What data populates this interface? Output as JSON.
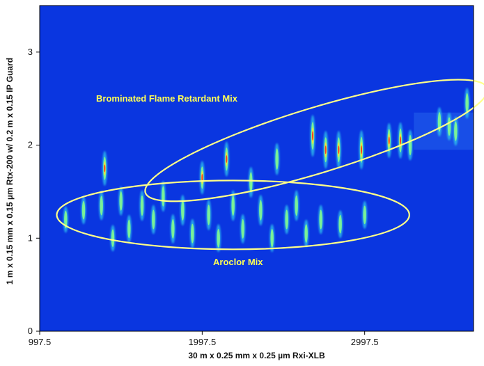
{
  "chart_data": {
    "type": "scatter",
    "subtype": "2D GCxGC contour plot",
    "title": "",
    "xlabel": "30 m x 0.25 mm x 0.25 µm Rxi-XLB",
    "ylabel": "1 m x 0.15 mm x 0.15 µm Rtx-200 w/ 0.2 m x 0.15 IP Guard",
    "xlim": [
      997.5,
      3667.5
    ],
    "ylim": [
      0,
      3.5
    ],
    "x_ticks": [
      "997.5",
      "1997.5",
      "2997.5"
    ],
    "y_ticks": [
      "0",
      "1",
      "2",
      "3"
    ],
    "background_color": "#0a36e0",
    "ellipse_color": "#ffff88",
    "grid": false,
    "groups": [
      {
        "name": "Brominated Flame Retardant Mix",
        "peaks": [
          {
            "x": 1397.5,
            "y": 1.75,
            "i": 0.75
          },
          {
            "x": 1997.5,
            "y": 1.65,
            "i": 0.7
          },
          {
            "x": 2147.5,
            "y": 1.85,
            "i": 0.75
          },
          {
            "x": 2297.5,
            "y": 1.6,
            "i": 0.6
          },
          {
            "x": 2457.5,
            "y": 1.85,
            "i": 0.65
          },
          {
            "x": 2677.5,
            "y": 2.1,
            "i": 1.0
          },
          {
            "x": 2757.5,
            "y": 1.95,
            "i": 0.85
          },
          {
            "x": 2837.5,
            "y": 1.95,
            "i": 0.85
          },
          {
            "x": 2977.5,
            "y": 1.95,
            "i": 0.9
          },
          {
            "x": 3147.5,
            "y": 2.05,
            "i": 0.75
          },
          {
            "x": 3217.5,
            "y": 2.05,
            "i": 0.8
          },
          {
            "x": 3277.5,
            "y": 2.0,
            "i": 0.6
          },
          {
            "x": 3457.5,
            "y": 2.25,
            "i": 0.55
          },
          {
            "x": 3517.5,
            "y": 2.2,
            "i": 0.5
          },
          {
            "x": 3557.5,
            "y": 2.15,
            "i": 0.55
          },
          {
            "x": 3627.5,
            "y": 2.45,
            "i": 0.6
          }
        ]
      },
      {
        "name": "Aroclor Mix",
        "peaks": [
          {
            "x": 1157.5,
            "y": 1.2,
            "i": 0.45
          },
          {
            "x": 1267.5,
            "y": 1.3,
            "i": 0.5
          },
          {
            "x": 1377.5,
            "y": 1.35,
            "i": 0.55
          },
          {
            "x": 1447.5,
            "y": 1.0,
            "i": 0.45
          },
          {
            "x": 1497.5,
            "y": 1.4,
            "i": 0.55
          },
          {
            "x": 1547.5,
            "y": 1.1,
            "i": 0.5
          },
          {
            "x": 1627.5,
            "y": 1.35,
            "i": 0.6
          },
          {
            "x": 1697.5,
            "y": 1.2,
            "i": 0.55
          },
          {
            "x": 1757.5,
            "y": 1.45,
            "i": 0.6
          },
          {
            "x": 1817.5,
            "y": 1.1,
            "i": 0.55
          },
          {
            "x": 1877.5,
            "y": 1.3,
            "i": 0.6
          },
          {
            "x": 1937.5,
            "y": 1.05,
            "i": 0.55
          },
          {
            "x": 2037.5,
            "y": 1.25,
            "i": 0.6
          },
          {
            "x": 2097.5,
            "y": 1.0,
            "i": 0.5
          },
          {
            "x": 2187.5,
            "y": 1.35,
            "i": 0.6
          },
          {
            "x": 2247.5,
            "y": 1.1,
            "i": 0.55
          },
          {
            "x": 2357.5,
            "y": 1.3,
            "i": 0.6
          },
          {
            "x": 2427.5,
            "y": 1.0,
            "i": 0.5
          },
          {
            "x": 2517.5,
            "y": 1.2,
            "i": 0.55
          },
          {
            "x": 2577.5,
            "y": 1.35,
            "i": 0.6
          },
          {
            "x": 2637.5,
            "y": 1.05,
            "i": 0.5
          },
          {
            "x": 2727.5,
            "y": 1.2,
            "i": 0.55
          },
          {
            "x": 2847.5,
            "y": 1.15,
            "i": 0.5
          },
          {
            "x": 2997.5,
            "y": 1.25,
            "i": 0.5
          }
        ]
      }
    ],
    "ellipses": [
      {
        "label": "Brominated Flame Retardant Mix",
        "cx": 2700,
        "cy": 2.05,
        "rx": 1100,
        "ry": 0.35,
        "rotate_deg": -17
      },
      {
        "label": "Aroclor Mix",
        "cx": 2187.5,
        "cy": 1.25,
        "rx": 1085,
        "ry": 0.37,
        "rotate_deg": 0
      }
    ]
  }
}
